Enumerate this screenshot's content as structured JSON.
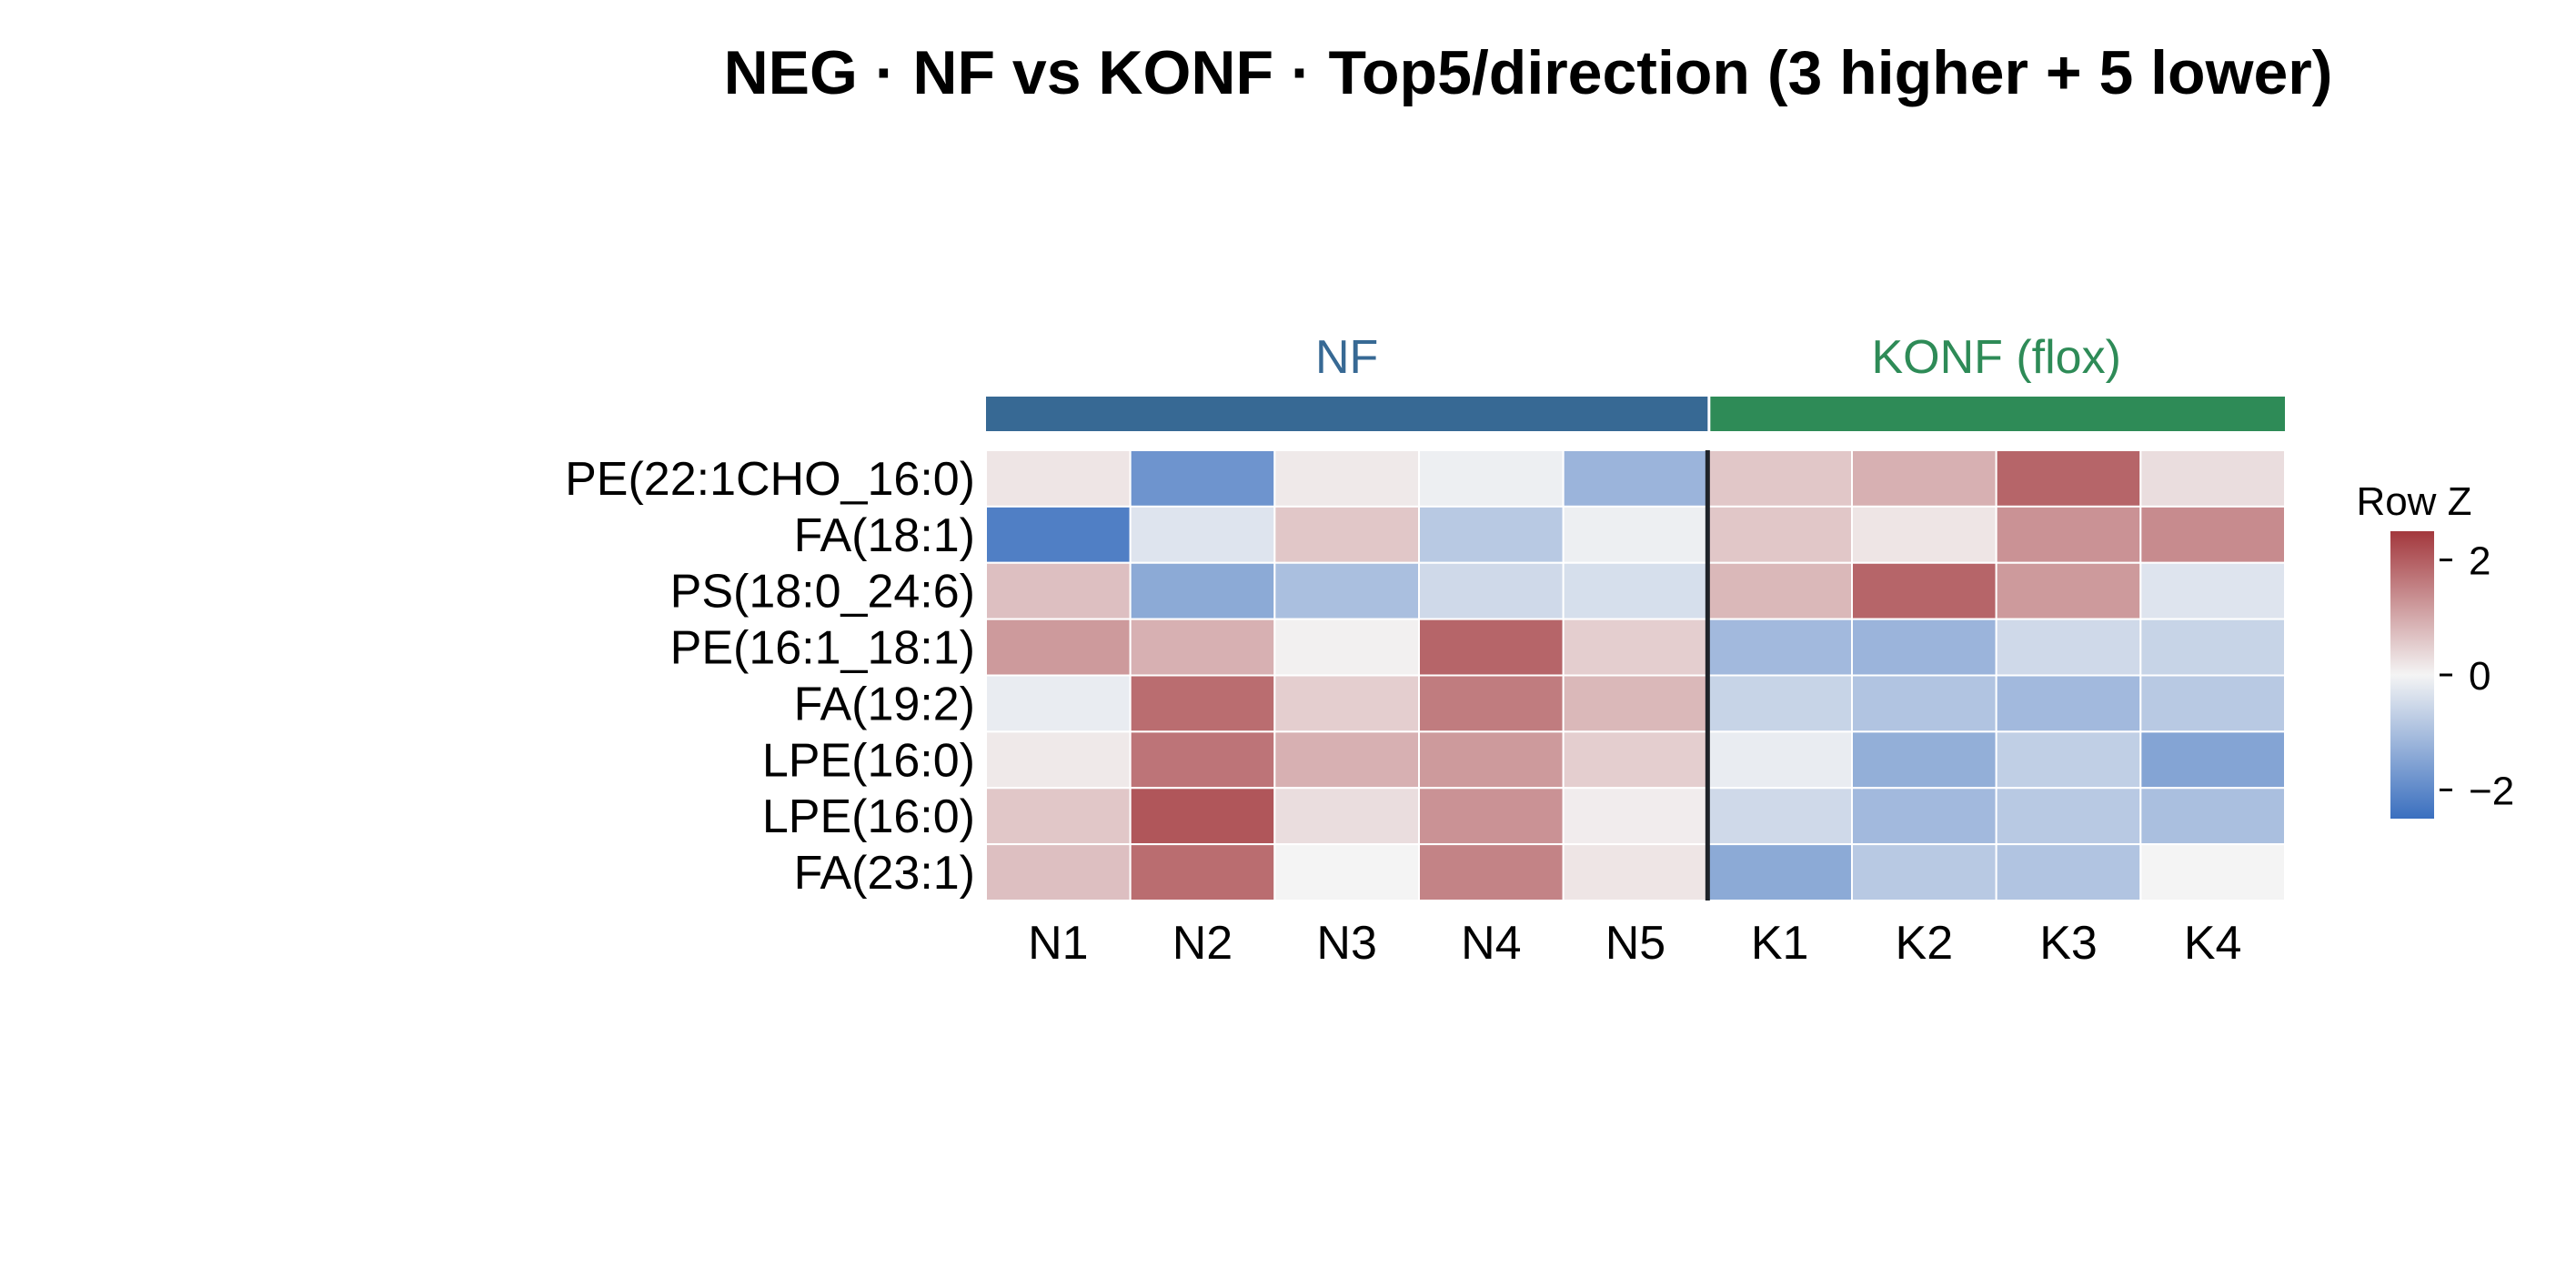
{
  "chart_data": {
    "type": "heatmap",
    "title": "NEG · NF vs KONF · Top5/direction (3 higher + 5 lower)",
    "groups": [
      {
        "name": "NF",
        "color": "#376994",
        "columns": [
          "N1",
          "N2",
          "N3",
          "N4",
          "N5"
        ]
      },
      {
        "name": "KONF (flox)",
        "color": "#2e8b57",
        "columns": [
          "K1",
          "K2",
          "K3",
          "K4"
        ]
      }
    ],
    "columns": [
      "N1",
      "N2",
      "N3",
      "N4",
      "N5",
      "K1",
      "K2",
      "K3",
      "K4"
    ],
    "rows": [
      "PE(22:1CHO_16:0)",
      "FA(18:1)",
      "PS(18:0_24:6)",
      "PE(16:1_18:1)",
      "FA(19:2)",
      "LPE(16:0)",
      "LPE(16:0)",
      "FA(23:1)"
    ],
    "values": [
      [
        0.2,
        -1.8,
        0.15,
        -0.1,
        -1.2,
        0.6,
        0.9,
        1.9,
        0.3
      ],
      [
        -2.2,
        -0.3,
        0.6,
        -0.8,
        -0.1,
        0.6,
        0.2,
        1.3,
        1.4
      ],
      [
        0.7,
        -1.4,
        -1.0,
        -0.5,
        -0.4,
        0.8,
        1.9,
        1.2,
        -0.3
      ],
      [
        1.2,
        0.9,
        0.05,
        1.9,
        0.5,
        -1.1,
        -1.2,
        -0.5,
        -0.6
      ],
      [
        -0.15,
        1.8,
        0.5,
        1.6,
        0.8,
        -0.6,
        -0.9,
        -1.1,
        -0.8
      ],
      [
        0.15,
        1.7,
        0.9,
        1.2,
        0.5,
        -0.15,
        -1.3,
        -0.7,
        -1.5
      ],
      [
        0.6,
        2.1,
        0.3,
        1.3,
        0.1,
        -0.5,
        -1.1,
        -0.8,
        -1.0
      ],
      [
        0.7,
        1.8,
        0.0,
        1.5,
        0.2,
        -1.4,
        -0.8,
        -0.9,
        0.0
      ]
    ],
    "colorscale": {
      "title": "Row Z",
      "min": -2.5,
      "max": 2.5,
      "low": "#3a6fbf",
      "mid": "#f4f4f4",
      "high": "#a3383d",
      "ticks": [
        2,
        0,
        -2
      ],
      "tick_labels": [
        "2",
        "0",
        "−2"
      ]
    },
    "group_separator_after_column": "N5"
  }
}
